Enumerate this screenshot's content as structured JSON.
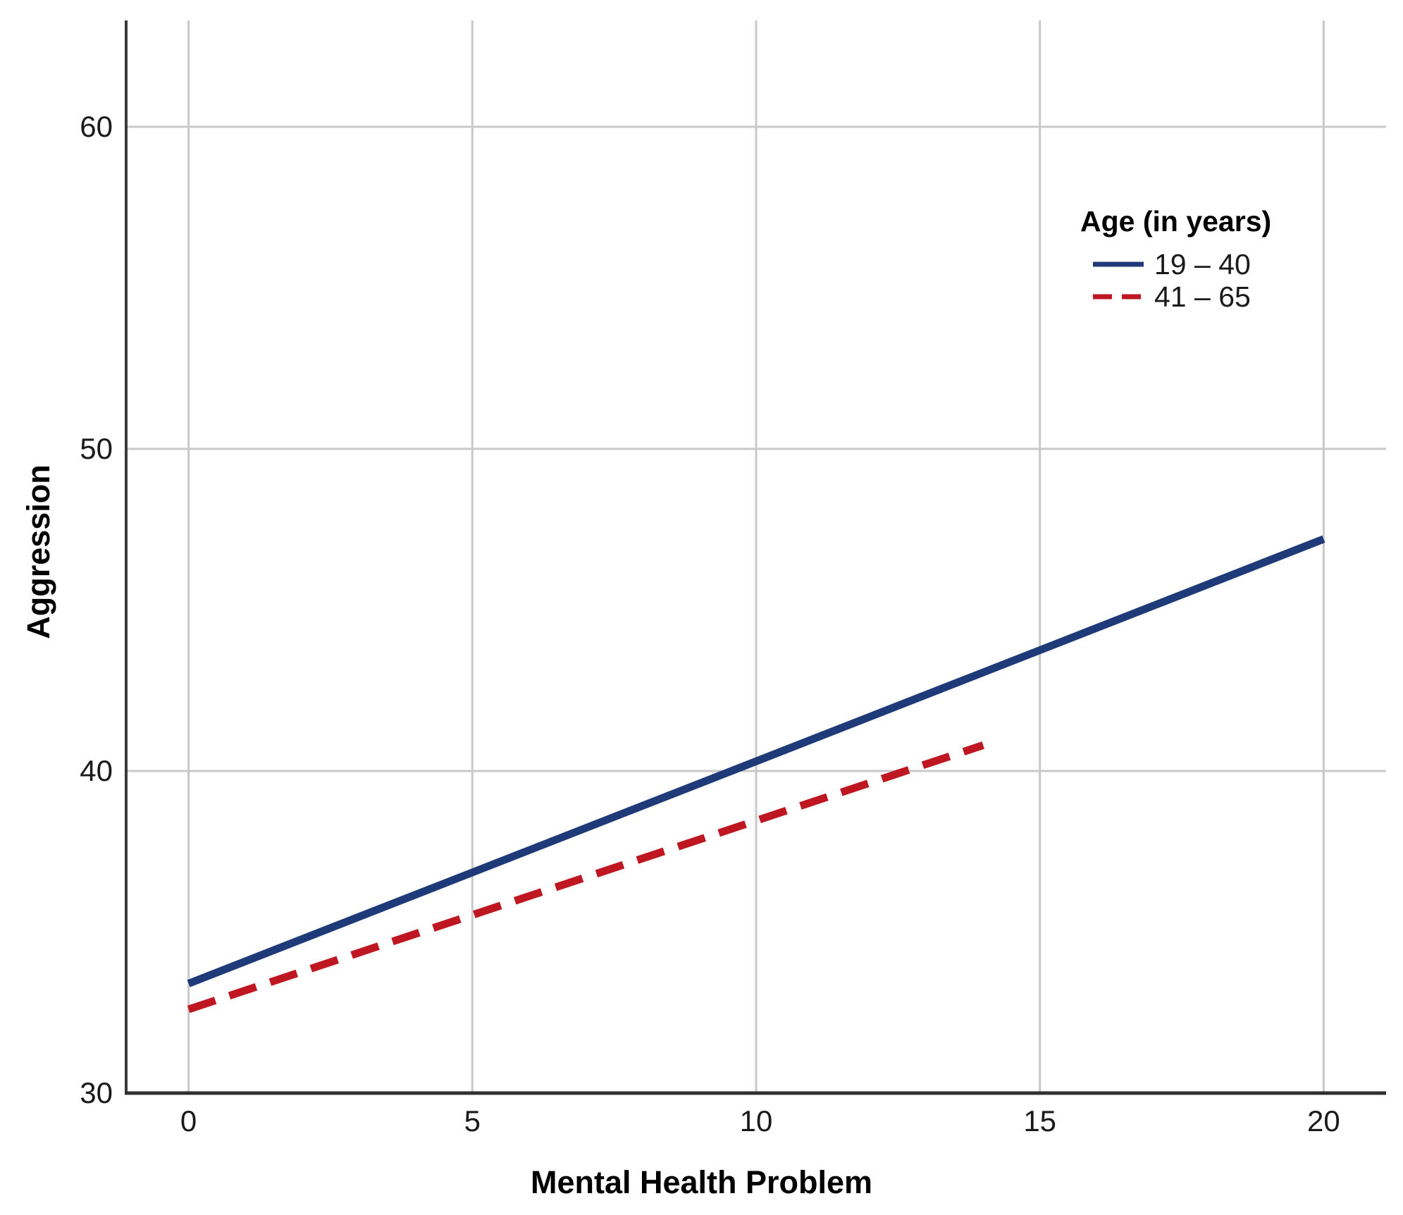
{
  "chart_data": {
    "type": "line",
    "title": "",
    "xlabel": "Mental Health Problem",
    "ylabel": "Aggression",
    "legend_title": "Age (in years)",
    "legend_position": "upper right inside plot",
    "grid": true,
    "x_ticks": [
      0,
      5,
      10,
      15,
      20
    ],
    "y_ticks": [
      30,
      40,
      50,
      60
    ],
    "xlim": [
      -1.1,
      21.1
    ],
    "ylim": [
      30,
      63.3
    ],
    "series": [
      {
        "name": "19 – 40",
        "color": "#1f3a78",
        "line_style": "solid",
        "line_width": 11,
        "points": [
          [
            0,
            33.4
          ],
          [
            20,
            47.2
          ]
        ]
      },
      {
        "name": "41 – 65",
        "color": "#bf1722",
        "line_style": "dashed",
        "dash_pattern": [
          40,
          21
        ],
        "line_width": 11,
        "points": [
          [
            0,
            32.6
          ],
          [
            14,
            40.8
          ]
        ]
      }
    ],
    "colors": {
      "gridline": "#c9c9c9",
      "axis_line": "#3a3a3a",
      "tick_text": "#1a1a1a"
    }
  }
}
